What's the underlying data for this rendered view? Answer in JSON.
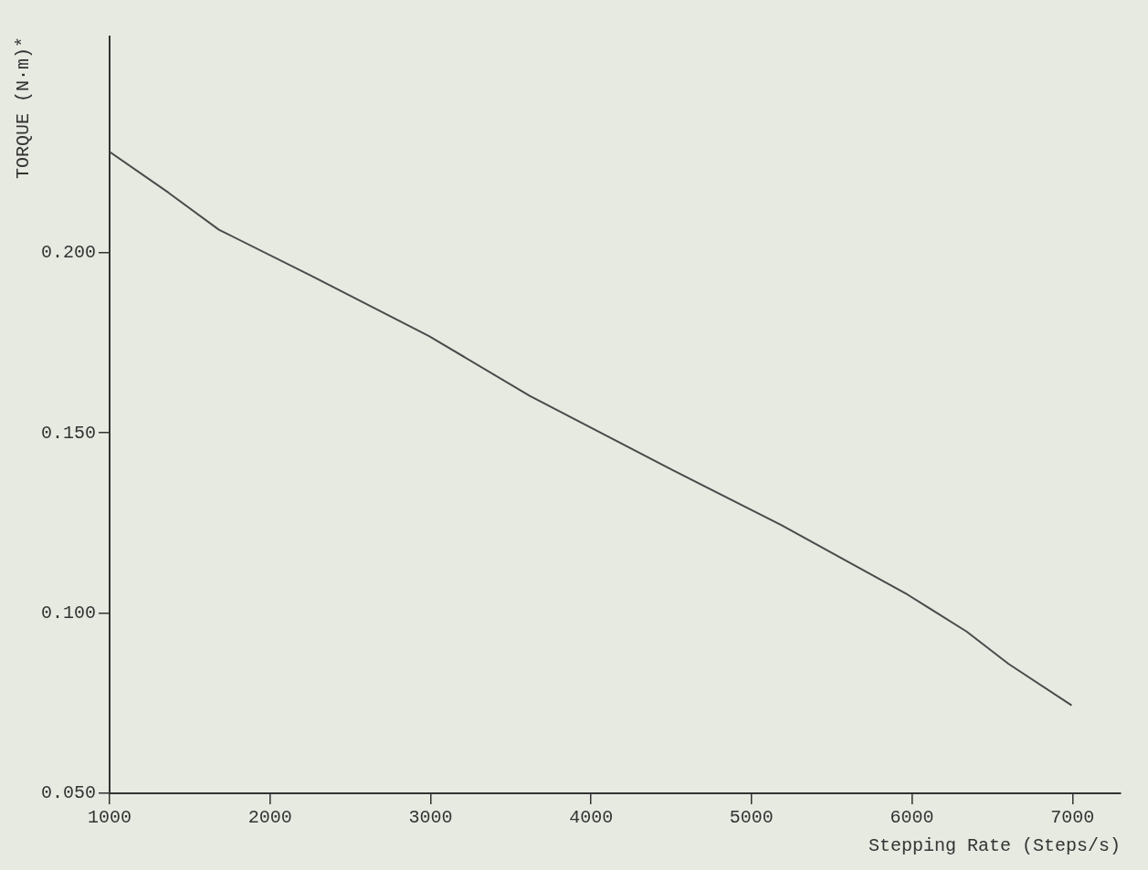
{
  "chart_data": {
    "type": "line",
    "xlabel": "Stepping Rate (Steps/s)",
    "ylabel": "TORQUE (N·m)*",
    "x": [
      1000,
      1366,
      1681,
      2257,
      2990,
      3618,
      4508,
      5188,
      5555,
      5974,
      6340,
      6602,
      6995
    ],
    "series": [
      {
        "color": "#4a4a4a",
        "values": [
          0.228,
          0.2167,
          0.2064,
          0.1936,
          0.1769,
          0.1603,
          0.1397,
          0.1244,
          0.1154,
          0.1051,
          0.0949,
          0.0859,
          0.0744
        ]
      }
    ],
    "xlim": [
      1000,
      7300
    ],
    "xticks": [
      1000,
      2000,
      3000,
      4000,
      5000,
      6000,
      7000
    ],
    "ylim": [
      0.05,
      0.26
    ],
    "yticks": [
      {
        "value": 0.05,
        "label": "0.050"
      },
      {
        "value": 0.1,
        "label": "0.100"
      },
      {
        "value": 0.15,
        "label": "0.150"
      },
      {
        "value": 0.2,
        "label": "0.200"
      }
    ],
    "grid": false,
    "legend": false,
    "marker": "none",
    "line_style": "solid"
  }
}
